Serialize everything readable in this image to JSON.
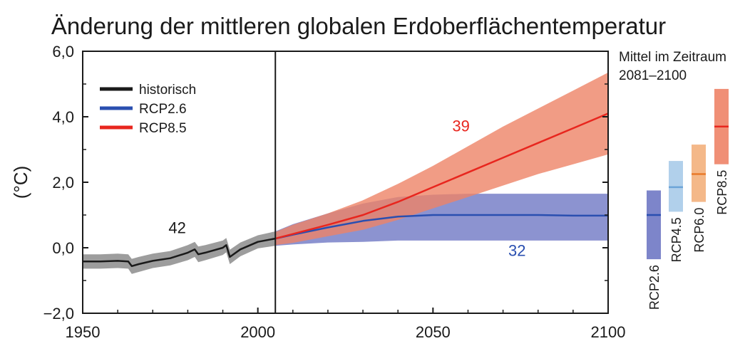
{
  "chart_data": {
    "type": "line",
    "title": "Änderung der mittleren globalen Erdoberflächentemperatur",
    "ylabel": "(°C)",
    "xlabel": "",
    "xlim": [
      1950,
      2100
    ],
    "ylim": [
      -2.0,
      6.0
    ],
    "x_ticks": [
      1950,
      2000,
      2050,
      2100
    ],
    "x_tick_labels": [
      "1950",
      "2000",
      "2050",
      "2100"
    ],
    "y_ticks": [
      -2.0,
      0.0,
      2.0,
      4.0,
      6.0
    ],
    "y_tick_labels": [
      "−2,0",
      "0,0",
      "2,0",
      "4,0",
      "6,0"
    ],
    "grid": false,
    "legend_position": "top-left",
    "vertical_line_x": 2005,
    "series": [
      {
        "name": "historisch",
        "color": "#1a1a1a",
        "band_color": "#8c8c8c",
        "x": [
          1950,
          1955,
          1960,
          1963,
          1964,
          1966,
          1970,
          1975,
          1980,
          1982,
          1983,
          1985,
          1990,
          1991,
          1992,
          1995,
          2000,
          2005
        ],
        "mean": [
          -0.42,
          -0.42,
          -0.4,
          -0.42,
          -0.56,
          -0.5,
          -0.4,
          -0.32,
          -0.15,
          -0.05,
          -0.2,
          -0.15,
          0.0,
          0.08,
          -0.28,
          -0.05,
          0.18,
          0.28
        ],
        "lower": [
          -0.64,
          -0.64,
          -0.62,
          -0.64,
          -0.8,
          -0.74,
          -0.62,
          -0.54,
          -0.38,
          -0.28,
          -0.44,
          -0.38,
          -0.22,
          -0.14,
          -0.5,
          -0.26,
          -0.02,
          0.06
        ],
        "upper": [
          -0.2,
          -0.2,
          -0.18,
          -0.2,
          -0.34,
          -0.28,
          -0.18,
          -0.1,
          0.08,
          0.18,
          0.04,
          0.08,
          0.22,
          0.3,
          -0.06,
          0.16,
          0.38,
          0.5
        ],
        "label": "42",
        "label_x": 1977,
        "label_y": 0.45
      },
      {
        "name": "RCP2.6",
        "color": "#2a4fb0",
        "band_color": "#6f78c4",
        "x": [
          2005,
          2010,
          2020,
          2030,
          2040,
          2050,
          2060,
          2070,
          2080,
          2090,
          2100
        ],
        "mean": [
          0.28,
          0.4,
          0.62,
          0.82,
          0.95,
          1.0,
          1.0,
          1.0,
          1.0,
          0.98,
          0.98
        ],
        "lower": [
          0.06,
          0.1,
          0.16,
          0.18,
          0.22,
          0.22,
          0.22,
          0.22,
          0.22,
          0.22,
          0.22
        ],
        "upper": [
          0.5,
          0.72,
          1.05,
          1.35,
          1.55,
          1.62,
          1.65,
          1.65,
          1.65,
          1.65,
          1.65
        ],
        "label": "32",
        "label_x": 2074,
        "label_y": -0.25
      },
      {
        "name": "RCP8.5",
        "color": "#e8261e",
        "band_color": "#ee8367",
        "x": [
          2005,
          2010,
          2020,
          2030,
          2040,
          2050,
          2060,
          2070,
          2080,
          2090,
          2100
        ],
        "mean": [
          0.28,
          0.42,
          0.7,
          1.0,
          1.4,
          1.85,
          2.3,
          2.75,
          3.2,
          3.65,
          4.1
        ],
        "lower": [
          0.08,
          0.15,
          0.35,
          0.55,
          0.85,
          1.2,
          1.55,
          1.9,
          2.25,
          2.55,
          2.85
        ],
        "upper": [
          0.48,
          0.7,
          1.05,
          1.45,
          1.95,
          2.5,
          3.1,
          3.7,
          4.25,
          4.8,
          5.35
        ],
        "label": "39",
        "label_x": 2058,
        "label_y": 3.55
      }
    ],
    "side_panel": {
      "title_line1": "Mittel im Zeitraum",
      "title_line2": "2081–2100",
      "bars": [
        {
          "name": "RCP2.6",
          "low": -0.35,
          "mean": 1.0,
          "high": 1.75,
          "fill": "#6f78c4",
          "line": "#2a4fb0"
        },
        {
          "name": "RCP4.5",
          "low": 1.1,
          "mean": 1.85,
          "high": 2.65,
          "fill": "#a9cbe9",
          "line": "#6ca4d8"
        },
        {
          "name": "RCP6.0",
          "low": 1.4,
          "mean": 2.25,
          "high": 3.15,
          "fill": "#f3b07c",
          "line": "#e97a2a"
        },
        {
          "name": "RCP8.5",
          "low": 2.55,
          "mean": 3.7,
          "high": 4.85,
          "fill": "#ee8367",
          "line": "#e8261e"
        }
      ]
    }
  }
}
